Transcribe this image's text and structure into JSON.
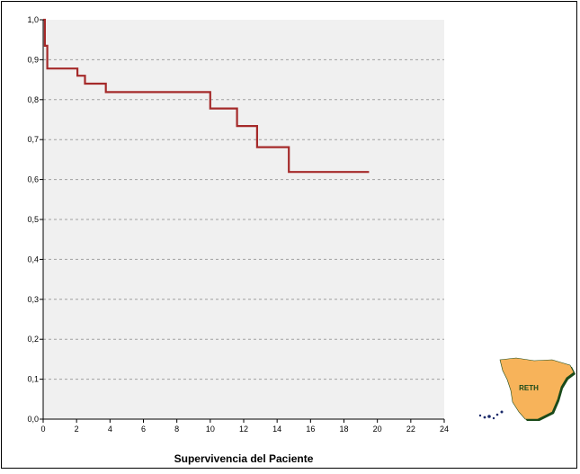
{
  "chart_data": {
    "type": "line",
    "subtype": "step",
    "title": "",
    "xlabel": "Supervivencia del Paciente",
    "ylabel": "",
    "xlim": [
      0,
      24
    ],
    "ylim": [
      0.0,
      1.0
    ],
    "x_ticks": [
      "0",
      "2",
      "4",
      "6",
      "8",
      "10",
      "12",
      "14",
      "16",
      "18",
      "20",
      "22",
      "24"
    ],
    "y_ticks": [
      "0,0",
      "0,1",
      "0,2",
      "0,3",
      "0,4",
      "0,5",
      "0,6",
      "0,7",
      "0,8",
      "0,9",
      "1,0"
    ],
    "grid": "horizontal dashed",
    "background_color": "#f0f0f0",
    "series": [
      {
        "color": "#a52a2a",
        "x": [
          0,
          0.1,
          0.1,
          0.25,
          0.25,
          2.05,
          2.05,
          2.5,
          2.5,
          3.75,
          3.75,
          10.0,
          10.0,
          11.6,
          11.6,
          12.8,
          12.8,
          14.7,
          14.7,
          19.5
        ],
        "y": [
          1.0,
          1.0,
          0.935,
          0.935,
          0.878,
          0.878,
          0.86,
          0.86,
          0.84,
          0.84,
          0.819,
          0.819,
          0.778,
          0.778,
          0.734,
          0.734,
          0.681,
          0.681,
          0.619,
          0.619
        ]
      }
    ]
  },
  "logo": {
    "text": "RETH",
    "fill_color": "#f7b35a",
    "text_color": "#1a4a1a",
    "shadow_color": "#1a4a1a"
  }
}
